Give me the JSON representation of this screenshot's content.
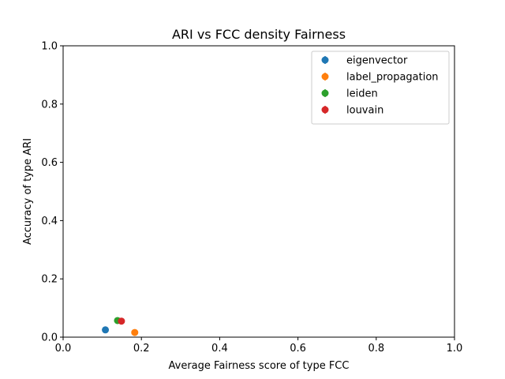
{
  "chart_data": {
    "type": "scatter",
    "title": "ARI vs FCC density Fairness",
    "xlabel": "Average Fairness score of type FCC",
    "ylabel": "Accuracy of type ARI",
    "xlim": [
      0,
      1
    ],
    "ylim": [
      0,
      1
    ],
    "xticks": [
      "0.0",
      "0.2",
      "0.4",
      "0.6",
      "0.8",
      "1.0"
    ],
    "yticks": [
      "0.0",
      "0.2",
      "0.4",
      "0.6",
      "0.8",
      "1.0"
    ],
    "grid": false,
    "legend_position": "top-right",
    "series": [
      {
        "name": "eigenvector",
        "color": "#1f77b4",
        "x": [
          0.108
        ],
        "y": [
          0.025
        ]
      },
      {
        "name": "label_propagation",
        "color": "#ff7f0e",
        "x": [
          0.183
        ],
        "y": [
          0.016
        ]
      },
      {
        "name": "leiden",
        "color": "#2ca02c",
        "x": [
          0.139
        ],
        "y": [
          0.057
        ]
      },
      {
        "name": "louvain",
        "color": "#d62728",
        "x": [
          0.149
        ],
        "y": [
          0.055
        ]
      }
    ]
  }
}
